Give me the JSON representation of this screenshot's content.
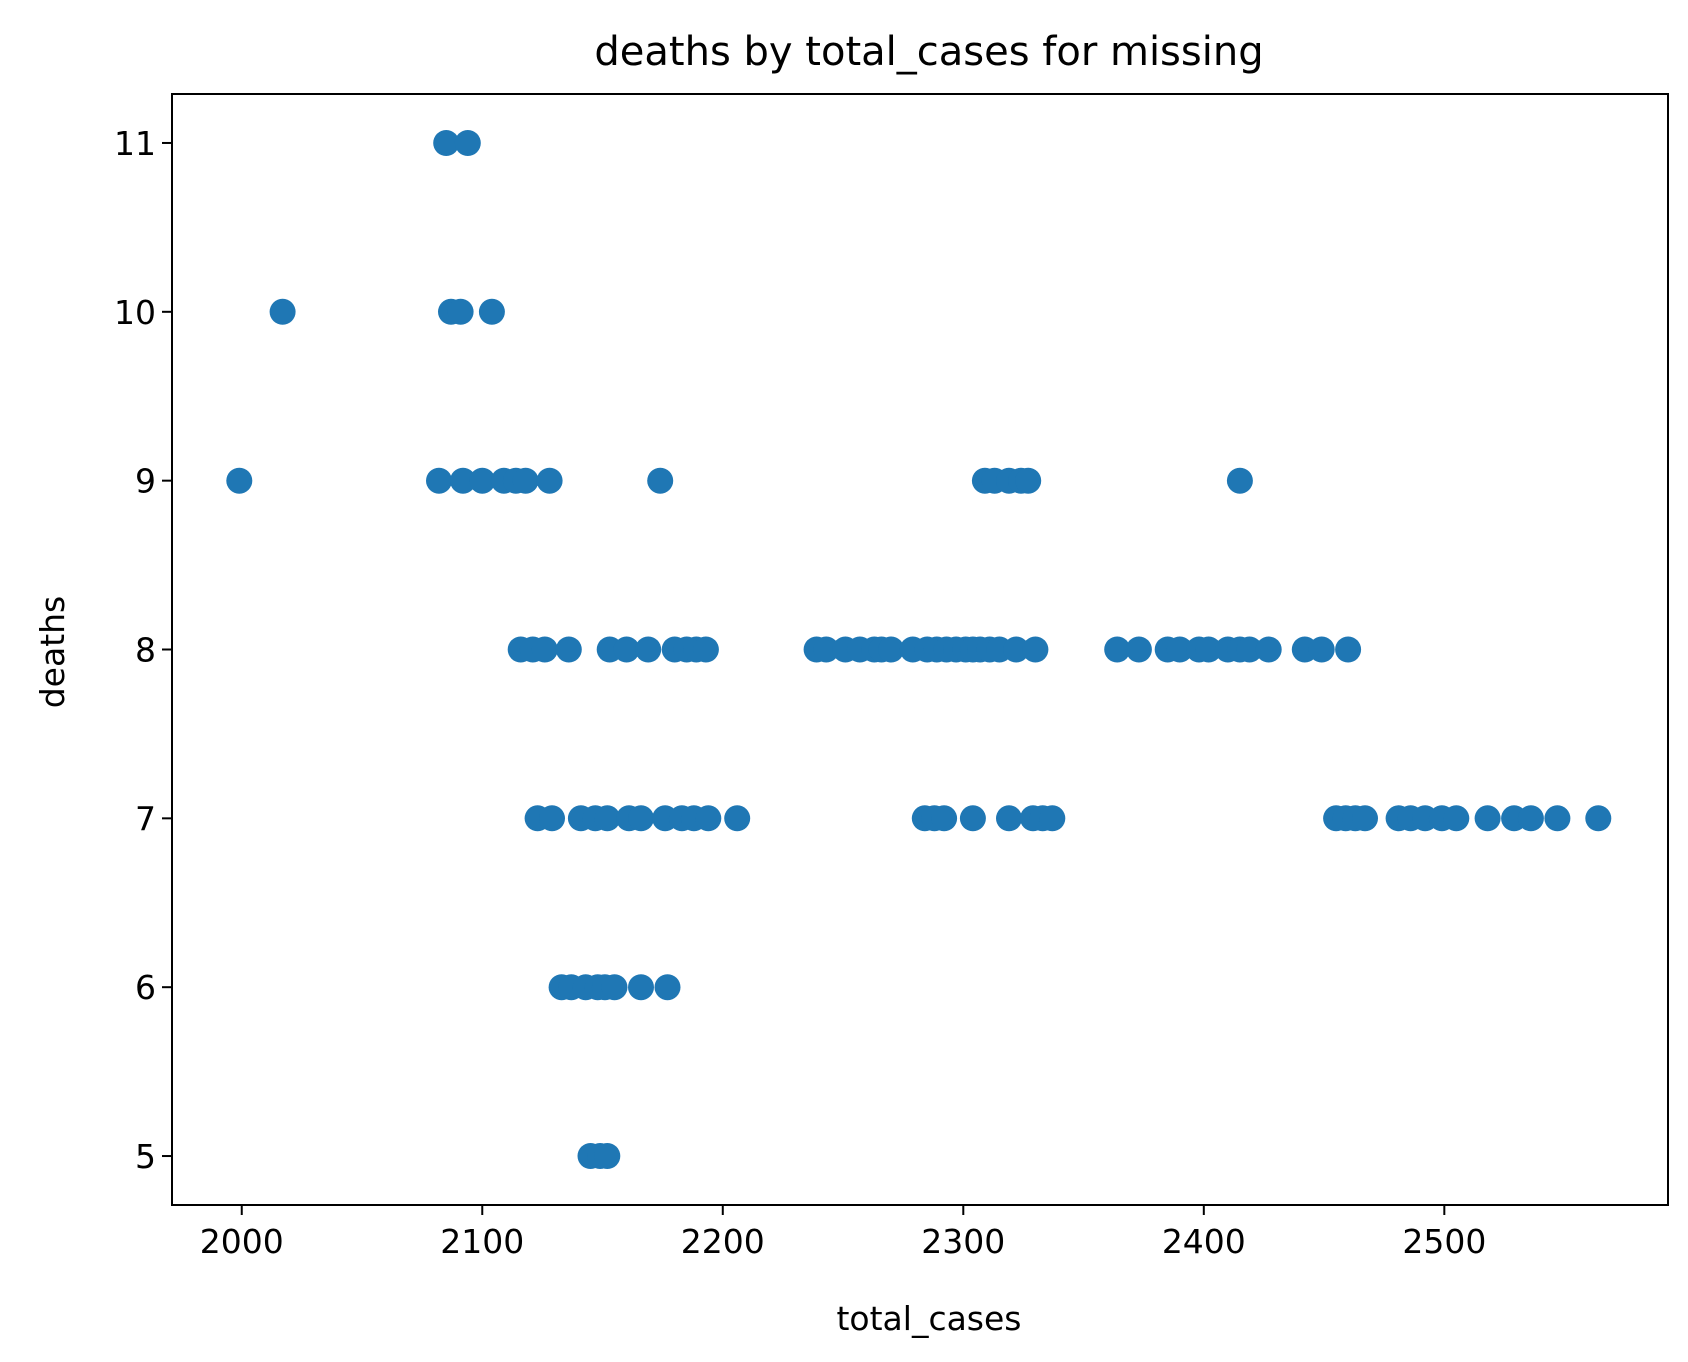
{
  "chart_data": {
    "type": "scatter",
    "title": "deaths by total_cases for missing",
    "xlabel": "total_cases",
    "ylabel": "deaths",
    "xlim": [
      1971,
      2593
    ],
    "ylim": [
      4.71,
      11.29
    ],
    "xticks": [
      2000,
      2100,
      2200,
      2300,
      2400,
      2500
    ],
    "yticks": [
      5,
      6,
      7,
      8,
      9,
      10,
      11
    ],
    "grid": false,
    "marker_color": "#1f77b4",
    "points": [
      {
        "x": 1999,
        "y": 9
      },
      {
        "x": 2017,
        "y": 10
      },
      {
        "x": 2085,
        "y": 11
      },
      {
        "x": 2094,
        "y": 11
      },
      {
        "x": 2087,
        "y": 10
      },
      {
        "x": 2091,
        "y": 10
      },
      {
        "x": 2104,
        "y": 10
      },
      {
        "x": 2082,
        "y": 9
      },
      {
        "x": 2092,
        "y": 9
      },
      {
        "x": 2100,
        "y": 9
      },
      {
        "x": 2109,
        "y": 9
      },
      {
        "x": 2114,
        "y": 9
      },
      {
        "x": 2118,
        "y": 9
      },
      {
        "x": 2128,
        "y": 9
      },
      {
        "x": 2174,
        "y": 9
      },
      {
        "x": 2309,
        "y": 9
      },
      {
        "x": 2313,
        "y": 9
      },
      {
        "x": 2319,
        "y": 9
      },
      {
        "x": 2324,
        "y": 9
      },
      {
        "x": 2327,
        "y": 9
      },
      {
        "x": 2415,
        "y": 9
      },
      {
        "x": 2116,
        "y": 8
      },
      {
        "x": 2121,
        "y": 8
      },
      {
        "x": 2126,
        "y": 8
      },
      {
        "x": 2136,
        "y": 8
      },
      {
        "x": 2153,
        "y": 8
      },
      {
        "x": 2160,
        "y": 8
      },
      {
        "x": 2169,
        "y": 8
      },
      {
        "x": 2180,
        "y": 8
      },
      {
        "x": 2185,
        "y": 8
      },
      {
        "x": 2189,
        "y": 8
      },
      {
        "x": 2193,
        "y": 8
      },
      {
        "x": 2239,
        "y": 8
      },
      {
        "x": 2243,
        "y": 8
      },
      {
        "x": 2251,
        "y": 8
      },
      {
        "x": 2257,
        "y": 8
      },
      {
        "x": 2263,
        "y": 8
      },
      {
        "x": 2266,
        "y": 8
      },
      {
        "x": 2270,
        "y": 8
      },
      {
        "x": 2279,
        "y": 8
      },
      {
        "x": 2285,
        "y": 8
      },
      {
        "x": 2289,
        "y": 8
      },
      {
        "x": 2293,
        "y": 8
      },
      {
        "x": 2297,
        "y": 8
      },
      {
        "x": 2301,
        "y": 8
      },
      {
        "x": 2304,
        "y": 8
      },
      {
        "x": 2307,
        "y": 8
      },
      {
        "x": 2311,
        "y": 8
      },
      {
        "x": 2315,
        "y": 8
      },
      {
        "x": 2322,
        "y": 8
      },
      {
        "x": 2330,
        "y": 8
      },
      {
        "x": 2364,
        "y": 8
      },
      {
        "x": 2373,
        "y": 8
      },
      {
        "x": 2385,
        "y": 8
      },
      {
        "x": 2390,
        "y": 8
      },
      {
        "x": 2398,
        "y": 8
      },
      {
        "x": 2402,
        "y": 8
      },
      {
        "x": 2410,
        "y": 8
      },
      {
        "x": 2415,
        "y": 8
      },
      {
        "x": 2419,
        "y": 8
      },
      {
        "x": 2427,
        "y": 8
      },
      {
        "x": 2442,
        "y": 8
      },
      {
        "x": 2449,
        "y": 8
      },
      {
        "x": 2460,
        "y": 8
      },
      {
        "x": 2123,
        "y": 7
      },
      {
        "x": 2129,
        "y": 7
      },
      {
        "x": 2141,
        "y": 7
      },
      {
        "x": 2147,
        "y": 7
      },
      {
        "x": 2152,
        "y": 7
      },
      {
        "x": 2161,
        "y": 7
      },
      {
        "x": 2166,
        "y": 7
      },
      {
        "x": 2176,
        "y": 7
      },
      {
        "x": 2183,
        "y": 7
      },
      {
        "x": 2188,
        "y": 7
      },
      {
        "x": 2194,
        "y": 7
      },
      {
        "x": 2206,
        "y": 7
      },
      {
        "x": 2284,
        "y": 7
      },
      {
        "x": 2288,
        "y": 7
      },
      {
        "x": 2292,
        "y": 7
      },
      {
        "x": 2304,
        "y": 7
      },
      {
        "x": 2319,
        "y": 7
      },
      {
        "x": 2329,
        "y": 7
      },
      {
        "x": 2333,
        "y": 7
      },
      {
        "x": 2337,
        "y": 7
      },
      {
        "x": 2455,
        "y": 7
      },
      {
        "x": 2459,
        "y": 7
      },
      {
        "x": 2463,
        "y": 7
      },
      {
        "x": 2467,
        "y": 7
      },
      {
        "x": 2481,
        "y": 7
      },
      {
        "x": 2486,
        "y": 7
      },
      {
        "x": 2492,
        "y": 7
      },
      {
        "x": 2499,
        "y": 7
      },
      {
        "x": 2505,
        "y": 7
      },
      {
        "x": 2518,
        "y": 7
      },
      {
        "x": 2529,
        "y": 7
      },
      {
        "x": 2536,
        "y": 7
      },
      {
        "x": 2547,
        "y": 7
      },
      {
        "x": 2564,
        "y": 7
      },
      {
        "x": 2133,
        "y": 6
      },
      {
        "x": 2137,
        "y": 6
      },
      {
        "x": 2143,
        "y": 6
      },
      {
        "x": 2148,
        "y": 6
      },
      {
        "x": 2151,
        "y": 6
      },
      {
        "x": 2155,
        "y": 6
      },
      {
        "x": 2166,
        "y": 6
      },
      {
        "x": 2177,
        "y": 6
      },
      {
        "x": 2145,
        "y": 5
      },
      {
        "x": 2149,
        "y": 5
      },
      {
        "x": 2152,
        "y": 5
      }
    ]
  }
}
